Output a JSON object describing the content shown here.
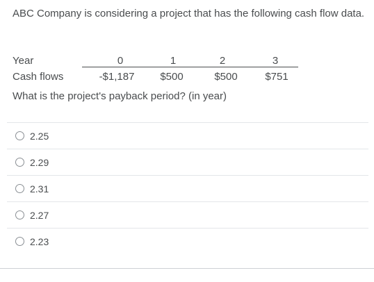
{
  "question": {
    "text": "ABC Company is considering a project that has the following cash flow data.",
    "prompt": "What is the project's payback period? (in year)"
  },
  "cash_flow_table": {
    "year_label": "Year",
    "cash_flows_label": "Cash flows",
    "years": [
      "0",
      "1",
      "2",
      "3"
    ],
    "cash_flows": [
      "-$1,187",
      "$500",
      "$500",
      "$751"
    ]
  },
  "choices": [
    {
      "label": "2.25"
    },
    {
      "label": "2.29"
    },
    {
      "label": "2.31"
    },
    {
      "label": "2.27"
    },
    {
      "label": "2.23"
    }
  ]
}
